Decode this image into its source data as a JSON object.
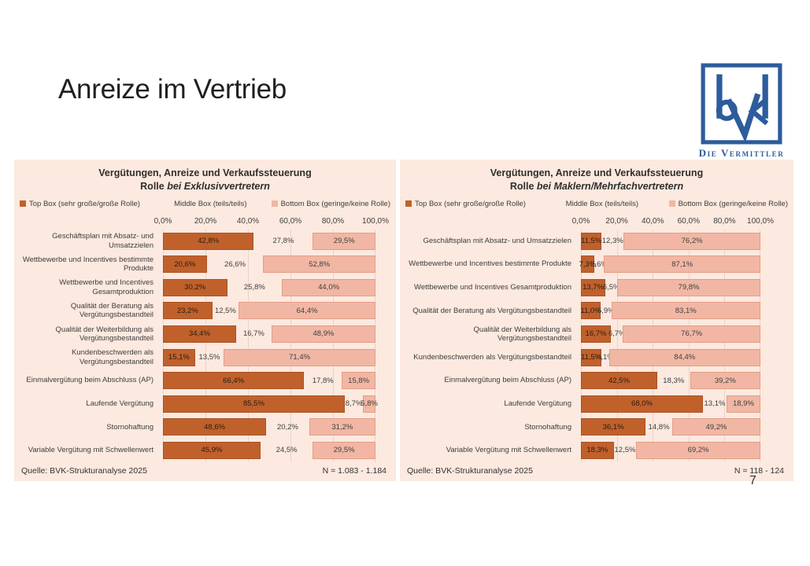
{
  "slide": {
    "title": "Anreize im Vertrieb",
    "page_number": "7"
  },
  "logo": {
    "caption": "Die Vermittler"
  },
  "colors": {
    "top_box": "#c0612c",
    "middle_box": "transparent",
    "bottom_box": "#f1b7a4",
    "panel_bg": "#fce9df",
    "grid": "#e6d4c9",
    "logo_blue": "#2d5c9c"
  },
  "chart_data": [
    {
      "type": "bar",
      "orientation": "horizontal",
      "stacked": true,
      "title": "Vergütungen, Anreize und Verkaufssteuerung",
      "subtitle_prefix": "Rolle ",
      "subtitle_italic": "bei Exklusivvertretern",
      "x_ticks": [
        "0,0%",
        "20,0%",
        "40,0%",
        "60,0%",
        "80,0%",
        "100,0%"
      ],
      "x_range": [
        0,
        100
      ],
      "grid": "vertical",
      "legend_position": "top",
      "categories": [
        "Geschäftsplan mit Absatz- und Umsatzzielen",
        "Wettbewerbe und Incentives bestimmte Produkte",
        "Wettbewerbe und Incentives Gesamtproduktion",
        "Qualität der Beratung als Vergütungsbestandteil",
        "Qualität der Weiterbildung als Vergütungsbestandteil",
        "Kundenbeschwerden als Vergütungsbestandteil",
        "Einmalvergütung beim Abschluss (AP)",
        "Laufende Vergütung",
        "Stornohaftung",
        "Variable Vergütung mit Schwellenwert"
      ],
      "series": [
        {
          "name": "Top Box (sehr große/große Rolle)",
          "color": "#c0612c",
          "values": [
            42.8,
            20.6,
            30.2,
            23.2,
            34.4,
            15.1,
            66.4,
            85.5,
            48.6,
            45.9
          ]
        },
        {
          "name": "Middle Box (teils/teils)",
          "color": "transparent",
          "values": [
            27.8,
            26.6,
            25.8,
            12.5,
            16.7,
            13.5,
            17.8,
            8.7,
            20.2,
            24.5
          ]
        },
        {
          "name": "Bottom Box (geringe/keine Rolle)",
          "color": "#f1b7a4",
          "values": [
            29.5,
            52.8,
            44.0,
            64.4,
            48.9,
            71.4,
            15.8,
            5.8,
            31.2,
            29.5
          ]
        }
      ],
      "source": "Quelle: BVK-Strukturanalyse 2025",
      "sample_size": "N = 1.083 - 1.184"
    },
    {
      "type": "bar",
      "orientation": "horizontal",
      "stacked": true,
      "title": "Vergütungen, Anreize und Verkaufssteuerung",
      "subtitle_prefix": "Rolle ",
      "subtitle_italic": "bei Maklern/Mehrfachvertretern",
      "x_ticks": [
        "0,0%",
        "20,0%",
        "40,0%",
        "60,0%",
        "80,0%",
        "100,0%"
      ],
      "x_range": [
        0,
        100
      ],
      "grid": "vertical",
      "legend_position": "top",
      "categories": [
        "Geschäftsplan mit Absatz- und Umsatzzielen",
        "Wettbewerbe und Incentives bestimmte Produkte",
        "Wettbewerbe und Incentives Gesamtproduktion",
        "Qualität der Beratung als Vergütungsbestandteil",
        "Qualität der Weiterbildung als Vergütungsbestandteil",
        "Kundenbeschwerden als Vergütungsbestandteil",
        "Einmalvergütung beim Abschluss (AP)",
        "Laufende Vergütung",
        "Stornohaftung",
        "Variable Vergütung mit Schwellenwert"
      ],
      "series": [
        {
          "name": "Top Box (sehr große/große Rolle)",
          "color": "#c0612c",
          "values": [
            11.5,
            7.3,
            13.7,
            11.0,
            16.7,
            11.5,
            42.5,
            68.0,
            36.1,
            18.3
          ]
        },
        {
          "name": "Middle Box (teils/teils)",
          "color": "transparent",
          "values": [
            12.3,
            5.6,
            6.5,
            5.9,
            6.7,
            4.1,
            18.3,
            13.1,
            14.8,
            12.5
          ]
        },
        {
          "name": "Bottom Box (geringe/keine Rolle)",
          "color": "#f1b7a4",
          "values": [
            76.2,
            87.1,
            79.8,
            83.1,
            76.7,
            84.4,
            39.2,
            18.9,
            49.2,
            69.2
          ]
        }
      ],
      "source": "Quelle: BVK-Strukturanalyse 2025",
      "sample_size": "N = 118 - 124"
    }
  ]
}
